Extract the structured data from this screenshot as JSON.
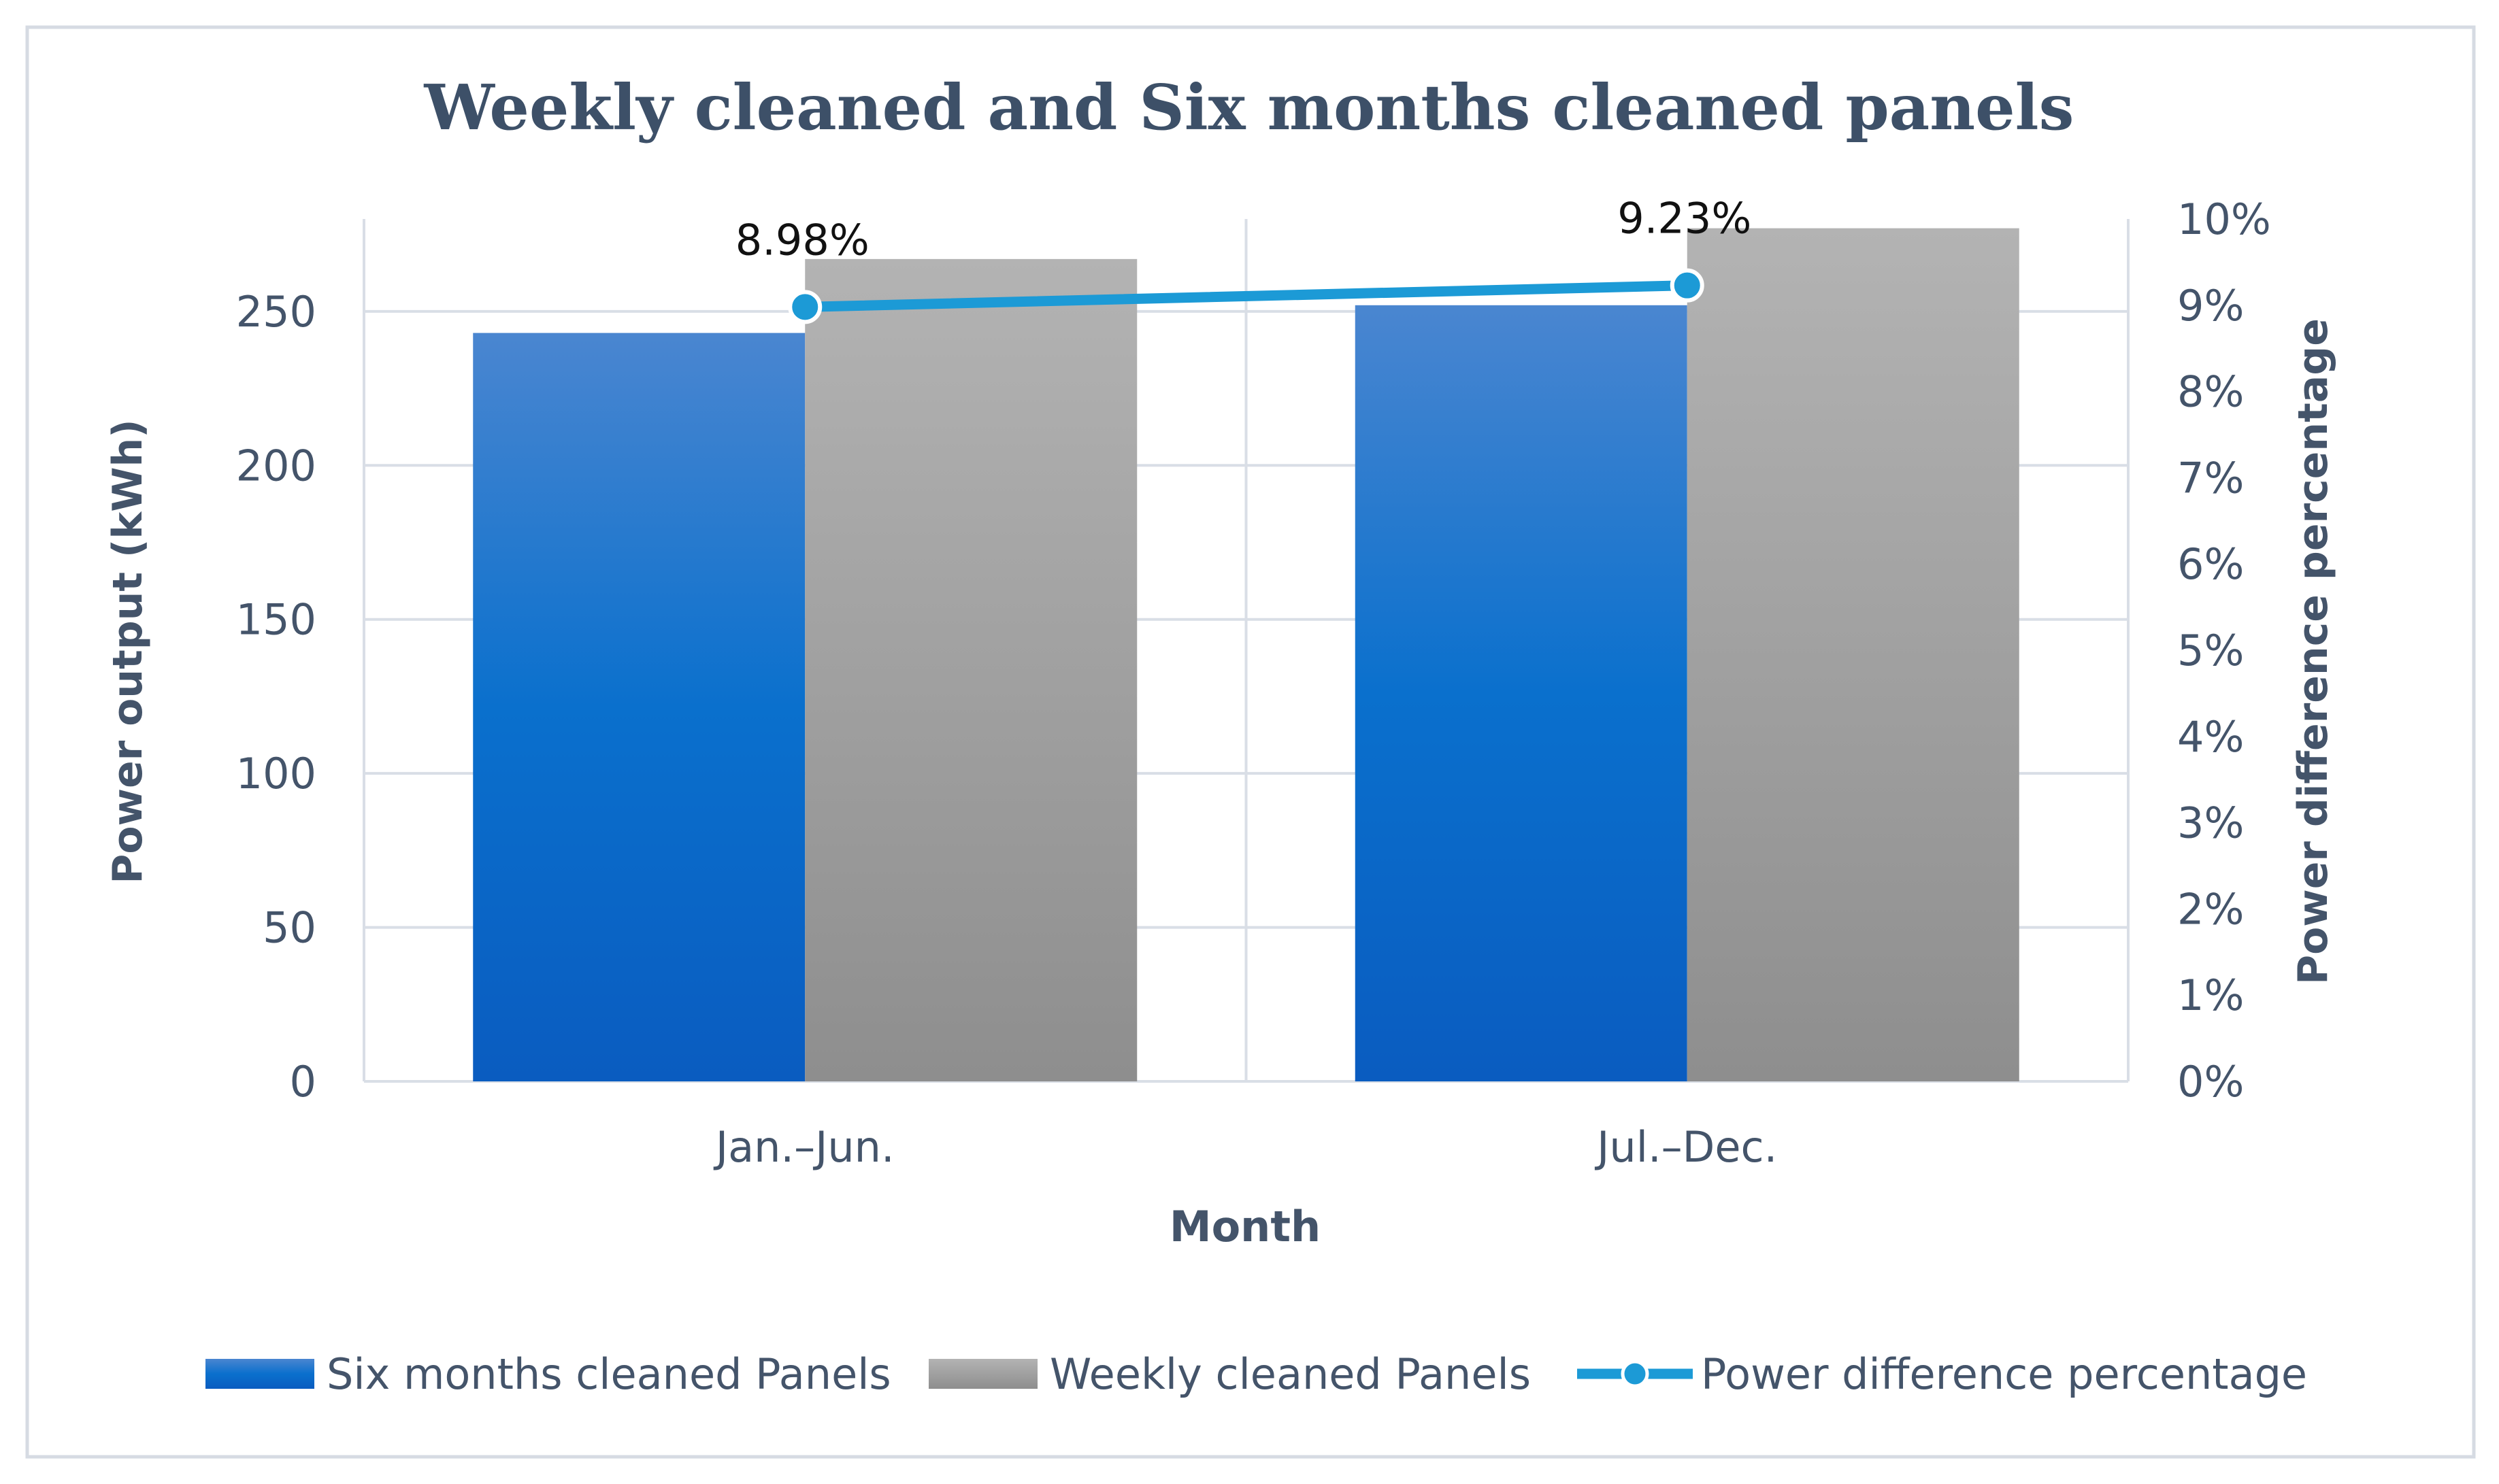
{
  "chart_data": {
    "type": "bar",
    "title": "Weekly cleaned and Six months cleaned panels",
    "xlabel": "Month",
    "ylabel": "Power output (kWh)",
    "y2label": "Power difference percentage",
    "categories": [
      "Jan.–Jun.",
      "Jul.–Dec."
    ],
    "ylim": [
      0,
      280
    ],
    "yticks": [
      0,
      50,
      100,
      150,
      200,
      250
    ],
    "y2lim": [
      0,
      10
    ],
    "y2ticks": [
      0,
      1,
      2,
      3,
      4,
      5,
      6,
      7,
      8,
      9,
      10
    ],
    "y2tick_labels": [
      "0%",
      "1%",
      "2%",
      "3%",
      "4%",
      "5%",
      "6%",
      "7%",
      "8%",
      "9%",
      "10%"
    ],
    "series": [
      {
        "name": "Six months cleaned Panels",
        "type": "bar",
        "axis": "left",
        "values": [
          243,
          252
        ]
      },
      {
        "name": "Weekly cleaned Panels",
        "type": "bar",
        "axis": "left",
        "values": [
          267,
          277
        ]
      },
      {
        "name": "Power difference percentage",
        "type": "line",
        "axis": "right",
        "values": [
          8.98,
          9.23
        ],
        "labels": [
          "8.98%",
          "9.23%"
        ]
      }
    ],
    "legend_position": "bottom",
    "grid": true
  },
  "colors": {
    "bar_blue_top": "#4a86d0",
    "bar_blue_mid": "#0a6fcc",
    "bar_blue_bottom": "#0a5cc0",
    "bar_gray_top": "#b2b2b2",
    "bar_gray_bottom": "#8f8f8f",
    "line": "#1c9ad6",
    "title": "#3d5068",
    "axis_text": "#44546a",
    "grid": "#d9dee6",
    "border": "#d6dbe3"
  }
}
